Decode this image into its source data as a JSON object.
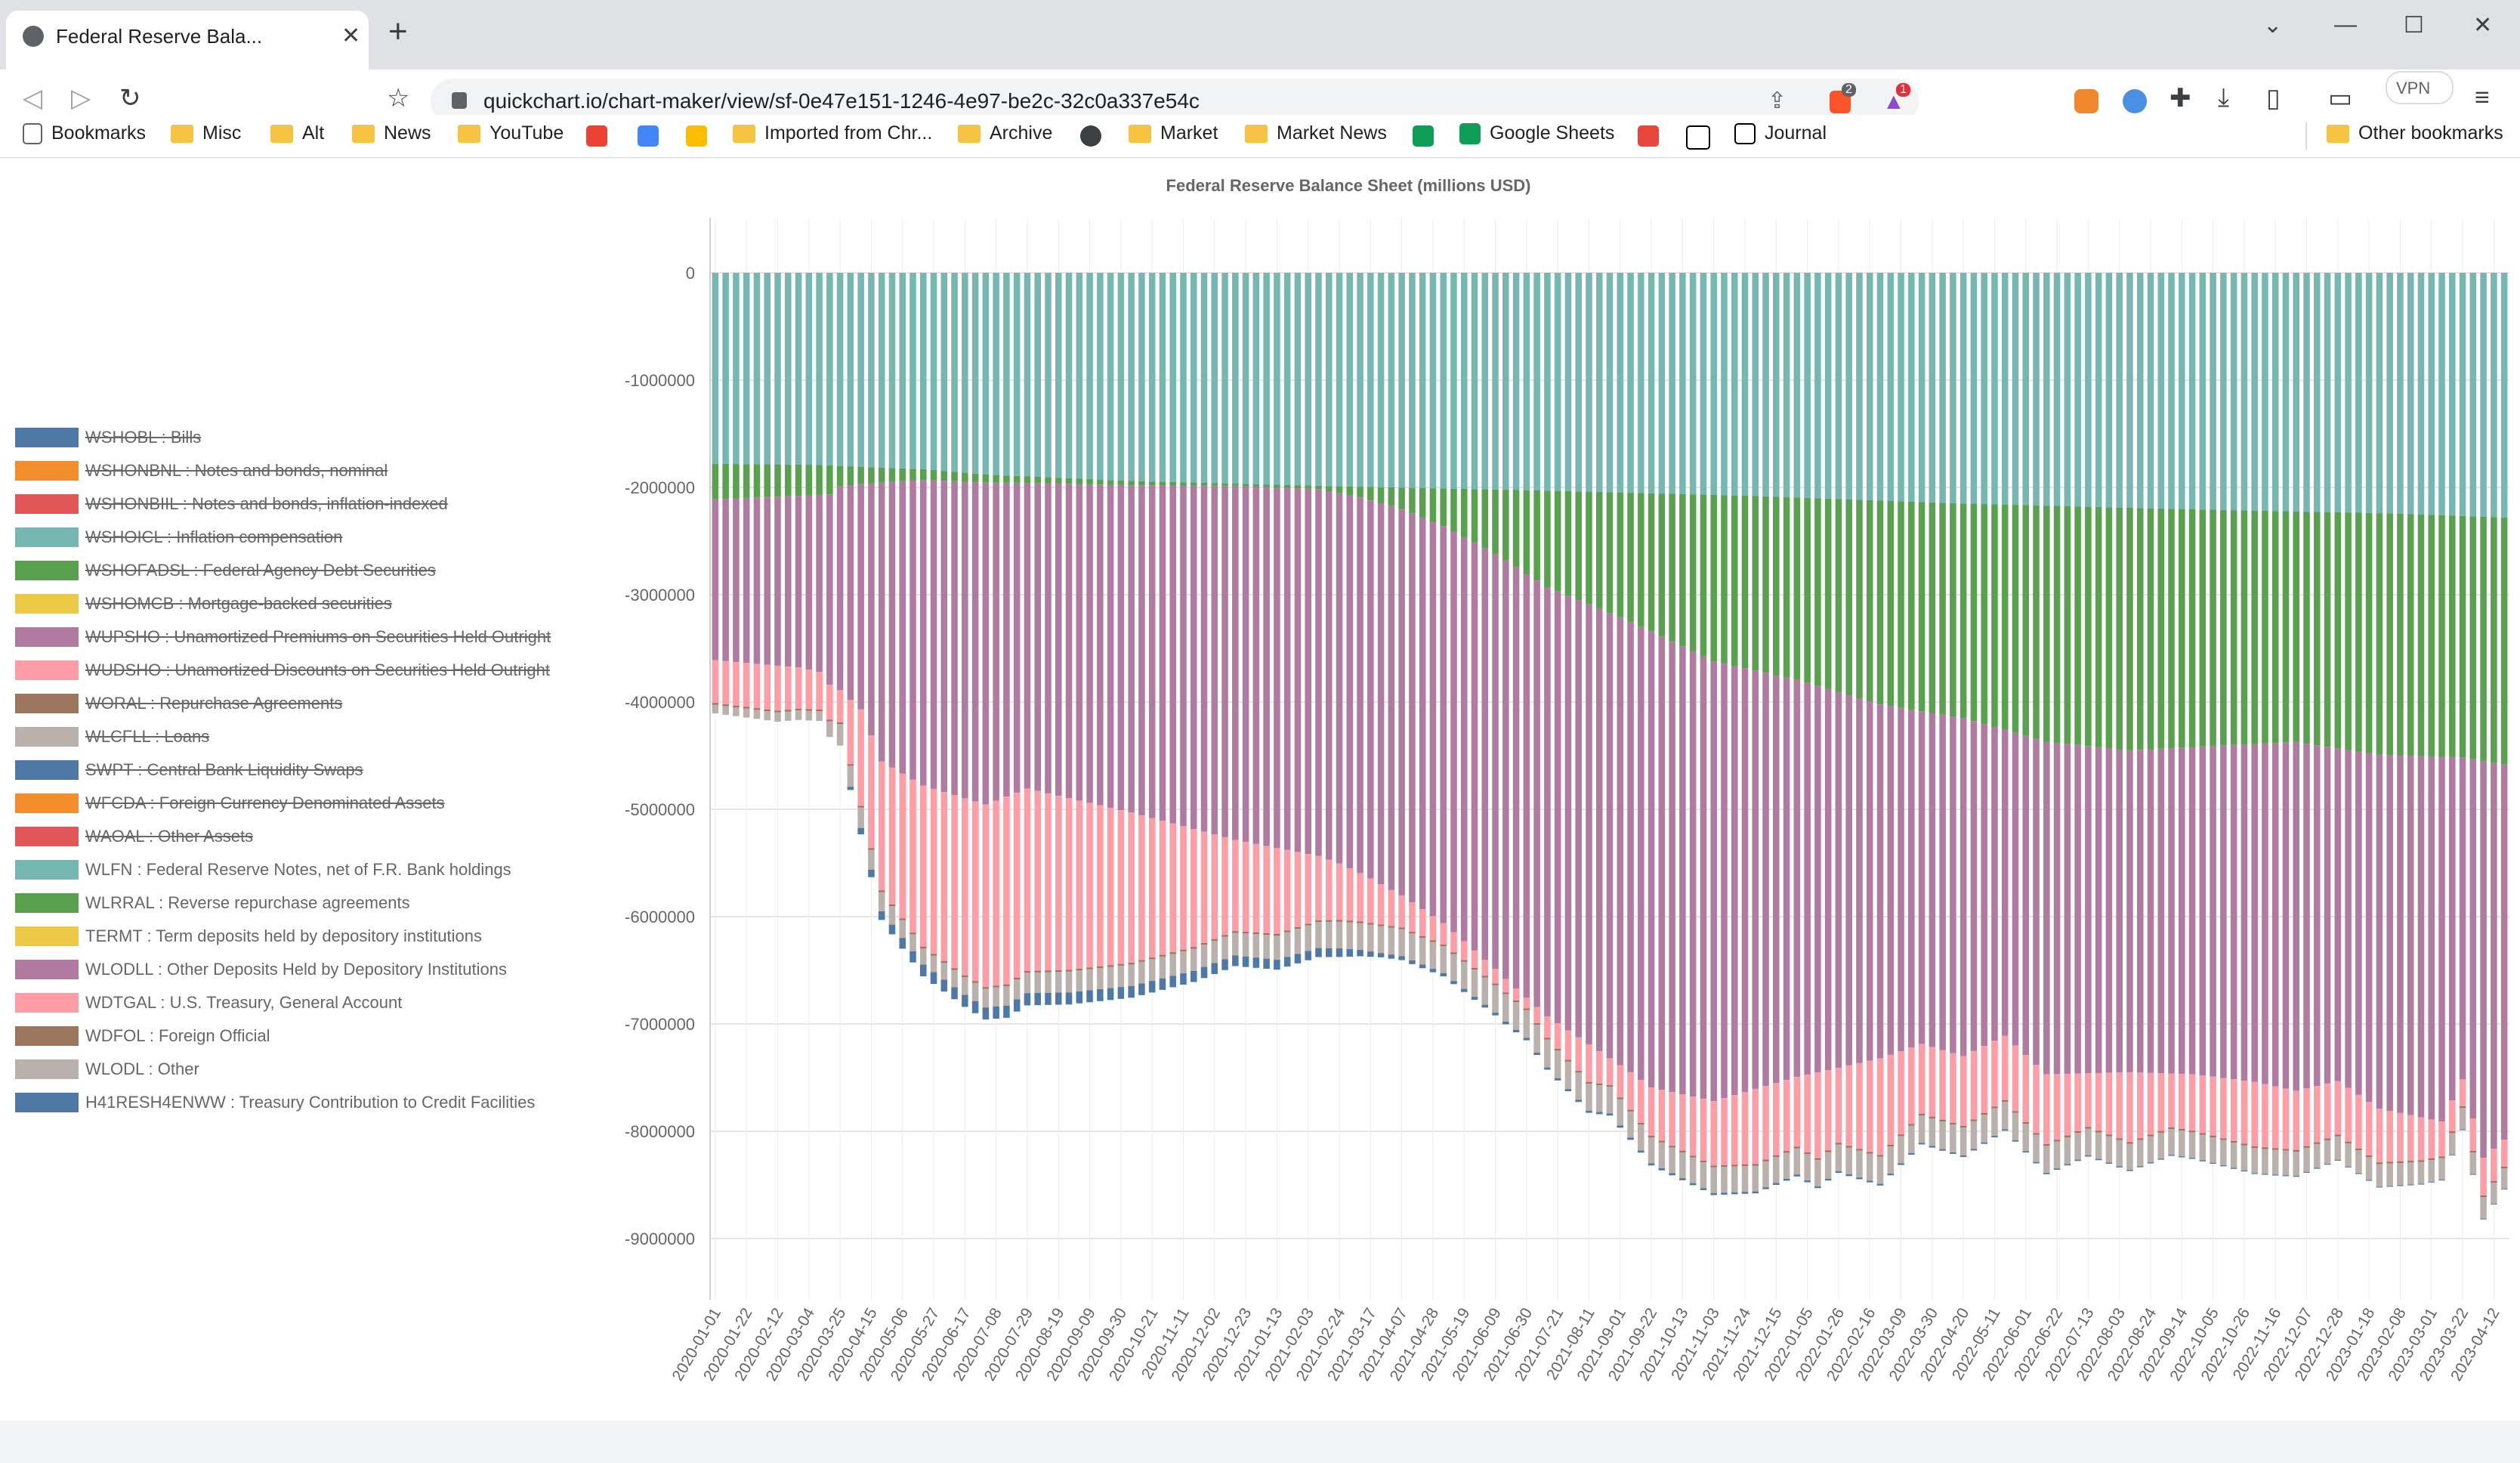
{
  "browser": {
    "tab_title": "Federal Reserve Bala...",
    "tab_close": "✕",
    "new_tab": "+",
    "url": "quickchart.io/chart-maker/view/sf-0e47e151-1246-4e97-be2c-32c0a337e54c",
    "vpn_label": "VPN",
    "brave_badge": "2",
    "alert_badge": "1",
    "bookmarks": [
      "Bookmarks",
      "Misc",
      "Alt",
      "News",
      "YouTube",
      "Imported from Chr...",
      "Archive",
      "Market",
      "Market News",
      "Google Sheets",
      "Journal",
      "Other bookmarks"
    ]
  },
  "chart_data": {
    "type": "bar",
    "stacked": true,
    "title": "Federal Reserve Balance Sheet (millions USD)",
    "ylim": [
      -9500000,
      500000
    ],
    "yticks": [
      0,
      -1000000,
      -2000000,
      -3000000,
      -4000000,
      -5000000,
      -6000000,
      -7000000,
      -8000000,
      -9000000
    ],
    "ytick_labels": [
      "0",
      "-1000000",
      "-2000000",
      "-3000000",
      "-4000000",
      "-5000000",
      "-6000000",
      "-7000000",
      "-8000000",
      "-9000000"
    ],
    "x_start": "2020-01-01",
    "x_step_days": 7,
    "n_weeks": 173,
    "xtick_labels": [
      "2020-01-01",
      "2020-01-22",
      "2020-02-12",
      "2020-03-04",
      "2020-03-25",
      "2020-04-15",
      "2020-05-06",
      "2020-05-27",
      "2020-06-17",
      "2020-07-08",
      "2020-07-29",
      "2020-08-19",
      "2020-09-09",
      "2020-09-30",
      "2020-10-21",
      "2020-11-11",
      "2020-12-02",
      "2020-12-23",
      "2021-01-13",
      "2021-02-03",
      "2021-02-24",
      "2021-03-17",
      "2021-04-07",
      "2021-04-28",
      "2021-05-19",
      "2021-06-09",
      "2021-06-30",
      "2021-07-21",
      "2021-08-11",
      "2021-09-01",
      "2021-09-22",
      "2021-10-13",
      "2021-11-03",
      "2021-11-24",
      "2021-12-15",
      "2022-01-05",
      "2022-01-26",
      "2022-02-16",
      "2022-03-09",
      "2022-03-30",
      "2022-04-20",
      "2022-05-11",
      "2022-06-01",
      "2022-06-22",
      "2022-07-13",
      "2022-08-03",
      "2022-08-24",
      "2022-09-14",
      "2022-10-05",
      "2022-10-26",
      "2022-11-16",
      "2022-12-07",
      "2022-12-28",
      "2023-01-18",
      "2023-02-08",
      "2023-03-01",
      "2023-03-22",
      "2023-04-12"
    ],
    "legend": [
      {
        "label": "WSHOBL : Bills",
        "color": "#4e79a7",
        "hidden": true
      },
      {
        "label": "WSHONBNL : Notes and bonds, nominal",
        "color": "#f28e2b",
        "hidden": true
      },
      {
        "label": "WSHONBIIL : Notes and bonds, inflation-indexed",
        "color": "#e15759",
        "hidden": true
      },
      {
        "label": "WSHOICL : Inflation compensation",
        "color": "#76b7b2",
        "hidden": true
      },
      {
        "label": "WSHOFADSL : Federal Agency Debt Securities",
        "color": "#59a14f",
        "hidden": true
      },
      {
        "label": "WSHOMCB : Mortgage-backed securities",
        "color": "#edc948",
        "hidden": true
      },
      {
        "label": "WUPSHO : Unamortized Premiums on Securities Held Outright",
        "color": "#b07aa1",
        "hidden": true
      },
      {
        "label": "WUDSHO : Unamortized Discounts on Securities Held Outright",
        "color": "#ff9da7",
        "hidden": true
      },
      {
        "label": "WORAL : Repurchase Agreements",
        "color": "#9c755f",
        "hidden": true
      },
      {
        "label": "WLCFLL : Loans",
        "color": "#bab0ac",
        "hidden": true
      },
      {
        "label": "SWPT : Central Bank Liquidity Swaps",
        "color": "#4e79a7",
        "hidden": true
      },
      {
        "label": "WFCDA : Foreign Currency Denominated Assets",
        "color": "#f28e2b",
        "hidden": true
      },
      {
        "label": "WAOAL : Other Assets",
        "color": "#e15759",
        "hidden": true
      },
      {
        "label": "WLFN : Federal Reserve Notes, net of F.R. Bank holdings",
        "color": "#76b7b2",
        "hidden": false
      },
      {
        "label": "WLRRAL : Reverse repurchase agreements",
        "color": "#59a14f",
        "hidden": false
      },
      {
        "label": "TERMT : Term deposits held by depository institutions",
        "color": "#edc948",
        "hidden": false
      },
      {
        "label": "WLODLL : Other Deposits Held by Depository Institutions",
        "color": "#b07aa1",
        "hidden": false
      },
      {
        "label": "WDTGAL : U.S. Treasury, General Account",
        "color": "#ff9da7",
        "hidden": false
      },
      {
        "label": "WDFOL : Foreign Official",
        "color": "#9c755f",
        "hidden": false
      },
      {
        "label": "WLODL : Other",
        "color": "#bab0ac",
        "hidden": false
      },
      {
        "label": "H41RESH4ENWW : Treasury Contribution to Credit Facilities",
        "color": "#4e79a7",
        "hidden": false
      }
    ],
    "series_order": [
      "WLFN",
      "WLRRAL",
      "WLODLL",
      "WDTGAL",
      "WDFOL",
      "WLODL",
      "H41RESH4ENWW"
    ],
    "series_colors": {
      "WLFN": "#76b7b2",
      "WLRRAL": "#59a14f",
      "WLODLL": "#b07aa1",
      "WDTGAL": "#ff9da7",
      "WDFOL": "#9c755f",
      "WLODL": "#bab0ac",
      "H41RESH4ENWW": "#4e79a7"
    },
    "series_anchors": {
      "WLFN": [
        [
          0,
          1780000
        ],
        [
          10,
          1790000
        ],
        [
          12,
          1800000
        ],
        [
          20,
          1830000
        ],
        [
          26,
          1880000
        ],
        [
          40,
          1940000
        ],
        [
          60,
          1990000
        ],
        [
          80,
          2030000
        ],
        [
          100,
          2080000
        ],
        [
          120,
          2150000
        ],
        [
          140,
          2200000
        ],
        [
          160,
          2240000
        ],
        [
          172,
          2280000
        ]
      ],
      "WLRRAL": [
        [
          0,
          330000
        ],
        [
          10,
          280000
        ],
        [
          11,
          270000
        ],
        [
          12,
          190000
        ],
        [
          14,
          160000
        ],
        [
          20,
          100000
        ],
        [
          30,
          60000
        ],
        [
          50,
          20000
        ],
        [
          58,
          30000
        ],
        [
          62,
          100000
        ],
        [
          66,
          200000
        ],
        [
          70,
          350000
        ],
        [
          75,
          600000
        ],
        [
          80,
          900000
        ],
        [
          88,
          1200000
        ],
        [
          96,
          1550000
        ],
        [
          104,
          1700000
        ],
        [
          112,
          1900000
        ],
        [
          120,
          2000000
        ],
        [
          128,
          2200000
        ],
        [
          136,
          2260000
        ],
        [
          144,
          2200000
        ],
        [
          152,
          2150000
        ],
        [
          160,
          2250000
        ],
        [
          168,
          2250000
        ],
        [
          172,
          2300000
        ]
      ],
      "WLODLL": [
        [
          0,
          1500000
        ],
        [
          8,
          1600000
        ],
        [
          10,
          1650000
        ],
        [
          12,
          1900000
        ],
        [
          14,
          2100000
        ],
        [
          16,
          2600000
        ],
        [
          20,
          2850000
        ],
        [
          26,
          3000000
        ],
        [
          30,
          2850000
        ],
        [
          40,
          3050000
        ],
        [
          50,
          3300000
        ],
        [
          60,
          3450000
        ],
        [
          66,
          3600000
        ],
        [
          70,
          3700000
        ],
        [
          76,
          3900000
        ],
        [
          84,
          4100000
        ],
        [
          90,
          4250000
        ],
        [
          96,
          4100000
        ],
        [
          100,
          3900000
        ],
        [
          104,
          3700000
        ],
        [
          108,
          3500000
        ],
        [
          112,
          3300000
        ],
        [
          116,
          3100000
        ],
        [
          120,
          3150000
        ],
        [
          124,
          2850000
        ],
        [
          128,
          3100000
        ],
        [
          136,
          3000000
        ],
        [
          142,
          3050000
        ],
        [
          148,
          3150000
        ],
        [
          152,
          3250000
        ],
        [
          156,
          3100000
        ],
        [
          160,
          3300000
        ],
        [
          166,
          3400000
        ],
        [
          168,
          3000000
        ],
        [
          170,
          3700000
        ],
        [
          172,
          3500000
        ]
      ],
      "WDTGAL": [
        [
          0,
          400000
        ],
        [
          6,
          420000
        ],
        [
          10,
          350000
        ],
        [
          12,
          300000
        ],
        [
          14,
          900000
        ],
        [
          16,
          1200000
        ],
        [
          20,
          1500000
        ],
        [
          24,
          1650000
        ],
        [
          28,
          1750000
        ],
        [
          30,
          1700000
        ],
        [
          34,
          1600000
        ],
        [
          40,
          1400000
        ],
        [
          46,
          1100000
        ],
        [
          50,
          850000
        ],
        [
          54,
          800000
        ],
        [
          58,
          600000
        ],
        [
          62,
          450000
        ],
        [
          66,
          300000
        ],
        [
          70,
          200000
        ],
        [
          74,
          150000
        ],
        [
          78,
          100000
        ],
        [
          80,
          200000
        ],
        [
          84,
          350000
        ],
        [
          86,
          250000
        ],
        [
          90,
          450000
        ],
        [
          96,
          600000
        ],
        [
          100,
          700000
        ],
        [
          104,
          650000
        ],
        [
          106,
          800000
        ],
        [
          108,
          700000
        ],
        [
          112,
          900000
        ],
        [
          116,
          650000
        ],
        [
          120,
          650000
        ],
        [
          124,
          600000
        ],
        [
          128,
          650000
        ],
        [
          132,
          500000
        ],
        [
          136,
          650000
        ],
        [
          140,
          500000
        ],
        [
          144,
          550000
        ],
        [
          148,
          600000
        ],
        [
          152,
          550000
        ],
        [
          156,
          500000
        ],
        [
          160,
          500000
        ],
        [
          164,
          400000
        ],
        [
          168,
          250000
        ],
        [
          170,
          350000
        ],
        [
          172,
          250000
        ]
      ],
      "WDFOL": [
        [
          0,
          16000
        ],
        [
          172,
          16000
        ]
      ],
      "WLODL": [
        [
          0,
          80000
        ],
        [
          10,
          90000
        ],
        [
          12,
          200000
        ],
        [
          16,
          180000
        ],
        [
          20,
          150000
        ],
        [
          30,
          190000
        ],
        [
          40,
          200000
        ],
        [
          50,
          210000
        ],
        [
          60,
          250000
        ],
        [
          70,
          250000
        ],
        [
          80,
          260000
        ],
        [
          90,
          240000
        ],
        [
          100,
          240000
        ],
        [
          110,
          250000
        ],
        [
          120,
          260000
        ],
        [
          130,
          250000
        ],
        [
          140,
          240000
        ],
        [
          150,
          230000
        ],
        [
          160,
          210000
        ],
        [
          166,
          200000
        ],
        [
          170,
          200000
        ],
        [
          172,
          190000
        ]
      ],
      "H41RESH4ENWW": [
        [
          0,
          0
        ],
        [
          12,
          0
        ],
        [
          14,
          60000
        ],
        [
          18,
          100000
        ],
        [
          20,
          110000
        ],
        [
          30,
          114000
        ],
        [
          40,
          110000
        ],
        [
          50,
          100000
        ],
        [
          60,
          80000
        ],
        [
          64,
          40000
        ],
        [
          70,
          30000
        ],
        [
          80,
          20000
        ],
        [
          90,
          20000
        ],
        [
          100,
          18000
        ],
        [
          110,
          16000
        ],
        [
          120,
          14000
        ],
        [
          130,
          12000
        ],
        [
          140,
          10000
        ],
        [
          150,
          9000
        ],
        [
          160,
          8000
        ],
        [
          172,
          7000
        ]
      ]
    }
  }
}
